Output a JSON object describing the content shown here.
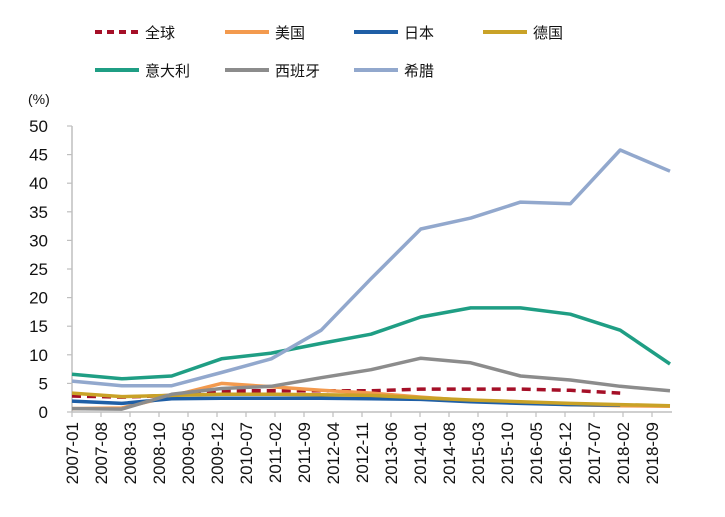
{
  "chart_data": {
    "type": "line",
    "title": "",
    "xlabel": "",
    "ylabel": "(%)",
    "ylim": [
      0,
      50
    ],
    "yticks": [
      "0",
      "5",
      "10",
      "15",
      "20",
      "25",
      "30",
      "35",
      "40",
      "45",
      "50"
    ],
    "xtick_labels": [
      "2007-01",
      "2007-08",
      "2008-03",
      "2008-10",
      "2009-05",
      "2009-12",
      "2010-07",
      "2011-02",
      "2011-09",
      "2012-04",
      "2012-11",
      "2013-06",
      "2014-01",
      "2014-08",
      "2015-03",
      "2015-10",
      "2016-05",
      "2016-12",
      "2017-07",
      "2018-02",
      "2018-09"
    ],
    "x_start": "2007-01",
    "x_step_months": 12,
    "grid": false,
    "legend_position": "top",
    "series": [
      {
        "name": "全球",
        "color": "#a50f27",
        "dashed": true,
        "values": [
          2.8,
          2.6,
          2.9,
          3.7,
          3.7,
          3.7,
          3.7,
          4.0,
          4.0,
          4.0,
          3.8,
          3.3,
          null
        ]
      },
      {
        "name": "美国",
        "color": "#f39a4e",
        "dashed": false,
        "values": [
          0.6,
          0.7,
          2.8,
          5.0,
          4.4,
          3.8,
          3.3,
          2.6,
          2.0,
          1.6,
          1.3,
          1.1,
          1.0
        ]
      },
      {
        "name": "日本",
        "color": "#1f5fa6",
        "dashed": false,
        "values": [
          1.9,
          1.5,
          2.3,
          2.4,
          2.4,
          2.4,
          2.3,
          2.2,
          1.8,
          1.5,
          1.3,
          1.2,
          null
        ]
      },
      {
        "name": "德国",
        "color": "#c9a227",
        "dashed": false,
        "values": [
          3.3,
          2.7,
          2.9,
          3.1,
          3.1,
          3.0,
          2.9,
          2.5,
          2.1,
          1.8,
          1.5,
          1.3,
          1.1
        ]
      },
      {
        "name": "意大利",
        "color": "#1f9e84",
        "dashed": false,
        "values": [
          6.6,
          5.8,
          6.3,
          9.3,
          10.3,
          12.0,
          13.6,
          16.6,
          18.2,
          18.2,
          17.1,
          14.3,
          8.4
        ]
      },
      {
        "name": "西班牙",
        "color": "#8c8c8c",
        "dashed": false,
        "values": [
          0.6,
          0.5,
          3.1,
          4.1,
          4.5,
          6.0,
          7.4,
          9.4,
          8.6,
          6.3,
          5.6,
          4.5,
          3.7
        ]
      },
      {
        "name": "希腊",
        "color": "#92a8cd",
        "dashed": false,
        "values": [
          5.4,
          4.6,
          4.6,
          6.9,
          9.3,
          14.3,
          23.3,
          32.0,
          33.9,
          36.7,
          36.4,
          45.8,
          42.1
        ]
      }
    ]
  }
}
